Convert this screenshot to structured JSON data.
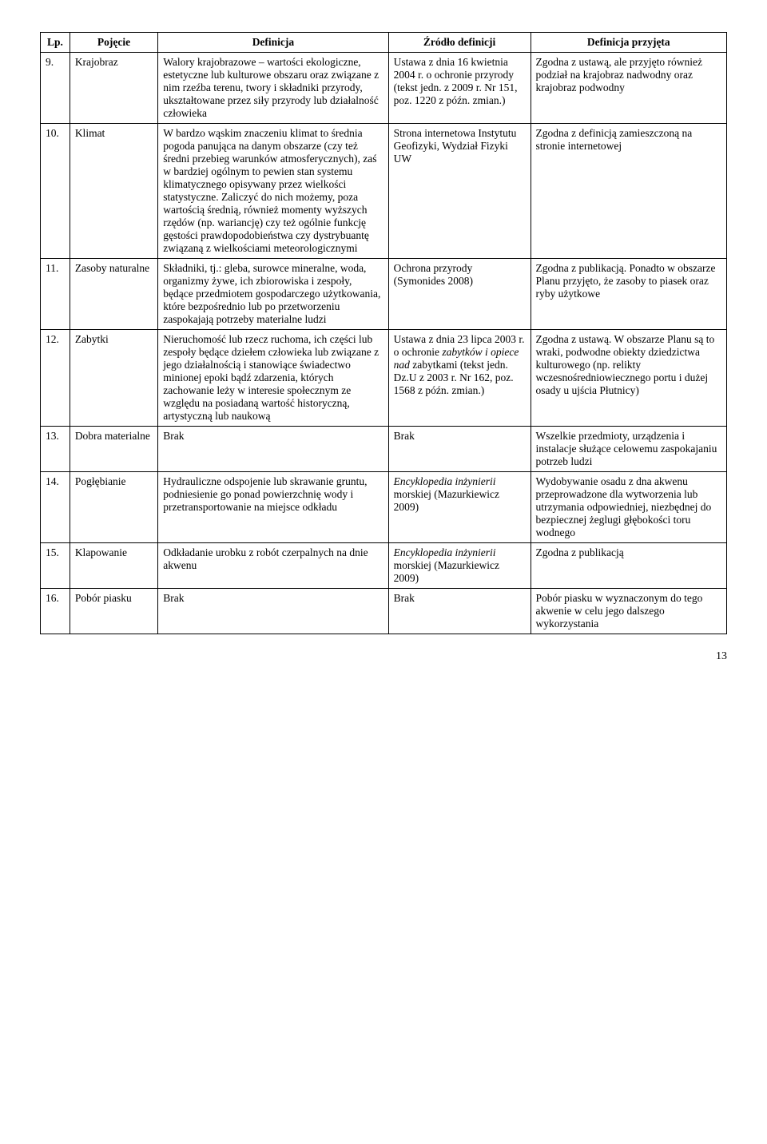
{
  "headers": {
    "lp": "Lp.",
    "pojecie": "Pojęcie",
    "definicja": "Definicja",
    "zrodlo": "Źródło definicji",
    "przyjeta": "Definicja przyjęta"
  },
  "rows": [
    {
      "lp": "9.",
      "pojecie": "Krajobraz",
      "definicja": "Walory krajobrazowe – wartości ekologiczne, estetyczne lub kulturowe obszaru oraz związane z nim rzeźba terenu, twory i składniki przyrody, ukształtowane przez siły przyrody lub działalność człowieka",
      "zrodlo": "Ustawa z dnia 16 kwietnia 2004 r. o ochronie przyrody (tekst jedn. z 2009 r. Nr 151, poz. 1220 z późn. zmian.)",
      "przyjeta": "Zgodna z ustawą, ale przyjęto również podział na krajobraz nadwodny oraz krajobraz podwodny"
    },
    {
      "lp": "10.",
      "pojecie": "Klimat",
      "definicja": "W bardzo wąskim znaczeniu klimat to średnia pogoda panująca na danym obszarze (czy też średni przebieg warunków atmosferycznych), zaś w bardziej ogólnym to pewien stan systemu klimatycznego opisywany przez wielkości statystyczne. Zaliczyć do nich możemy, poza wartością średnią, również momenty wyższych rzędów (np. wariancję) czy też ogólnie funkcję gęstości prawdopodobieństwa czy dystrybuantę związaną z wielkościami meteorologicznymi",
      "zrodlo": "Strona internetowa Instytutu Geofizyki, Wydział Fizyki UW",
      "przyjeta": "Zgodna z definicją zamieszczoną na stronie internetowej"
    },
    {
      "lp": "11.",
      "pojecie": "Zasoby naturalne",
      "definicja": "Składniki, tj.: gleba, surowce mineralne, woda, organizmy żywe, ich zbiorowiska i zespoły, będące przedmiotem gospodarczego użytkowania, które bezpośrednio lub po przetworzeniu zaspokajają potrzeby materialne ludzi",
      "zrodlo": "Ochrona przyrody (Symonides 2008)",
      "przyjeta": "Zgodna z publikacją. Ponadto w obszarze Planu przyjęto, że zasoby to piasek oraz ryby użytkowe"
    },
    {
      "lp": "12.",
      "pojecie": "Zabytki",
      "definicja": "Nieruchomość lub rzecz ruchoma, ich części lub zespoły będące dziełem człowieka lub związane z jego działalnością i stanowiące świadectwo minionej epoki bądź zdarzenia, których zachowanie leży w interesie społecznym ze względu na posiadaną wartość historyczną, artystyczną lub naukową",
      "zrodlo_html": "Ustawa z dnia 23 lipca 2003 r. o ochronie <span class=\"italic\">zabytków i opiece nad</span> zabytkami (tekst jedn. Dz.U z 2003 r. Nr 162, poz. 1568 z późn. zmian.)",
      "przyjeta": "Zgodna z ustawą. W obszarze Planu są to wraki, podwodne obiekty dziedzictwa kulturowego (np. relikty wczesnośredniowiecznego portu i dużej osady u ujścia Płutnicy)"
    },
    {
      "lp": "13.",
      "pojecie": "Dobra materialne",
      "definicja": "Brak",
      "zrodlo": "Brak",
      "przyjeta": "Wszelkie przedmioty, urządzenia i instalacje służące celowemu zaspokajaniu potrzeb ludzi"
    },
    {
      "lp": "14.",
      "pojecie": "Pogłębianie",
      "definicja": "Hydrauliczne odspojenie lub skrawanie gruntu, podniesienie go ponad powierzchnię wody i przetransportowanie na miejsce odkładu",
      "zrodlo_html": "<span class=\"italic\">Encyklopedia inżynierii</span> morskiej (Mazurkiewicz 2009)",
      "przyjeta": "Wydobywanie osadu z dna akwenu przeprowadzone dla wytworzenia lub utrzymania odpowiedniej, niezbędnej do bezpiecznej żeglugi głębokości toru wodnego"
    },
    {
      "lp": "15.",
      "pojecie": "Klapowanie",
      "definicja": "Odkładanie urobku z robót czerpalnych na dnie akwenu",
      "zrodlo_html": "<span class=\"italic\">Encyklopedia inżynierii</span> morskiej (Mazurkiewicz 2009)",
      "przyjeta": "Zgodna z publikacją"
    },
    {
      "lp": "16.",
      "pojecie": "Pobór piasku",
      "definicja": "Brak",
      "zrodlo": "Brak",
      "przyjeta": "Pobór piasku w wyznaczonym do tego akwenie w celu jego dalszego wykorzystania"
    }
  ],
  "page_number": "13"
}
